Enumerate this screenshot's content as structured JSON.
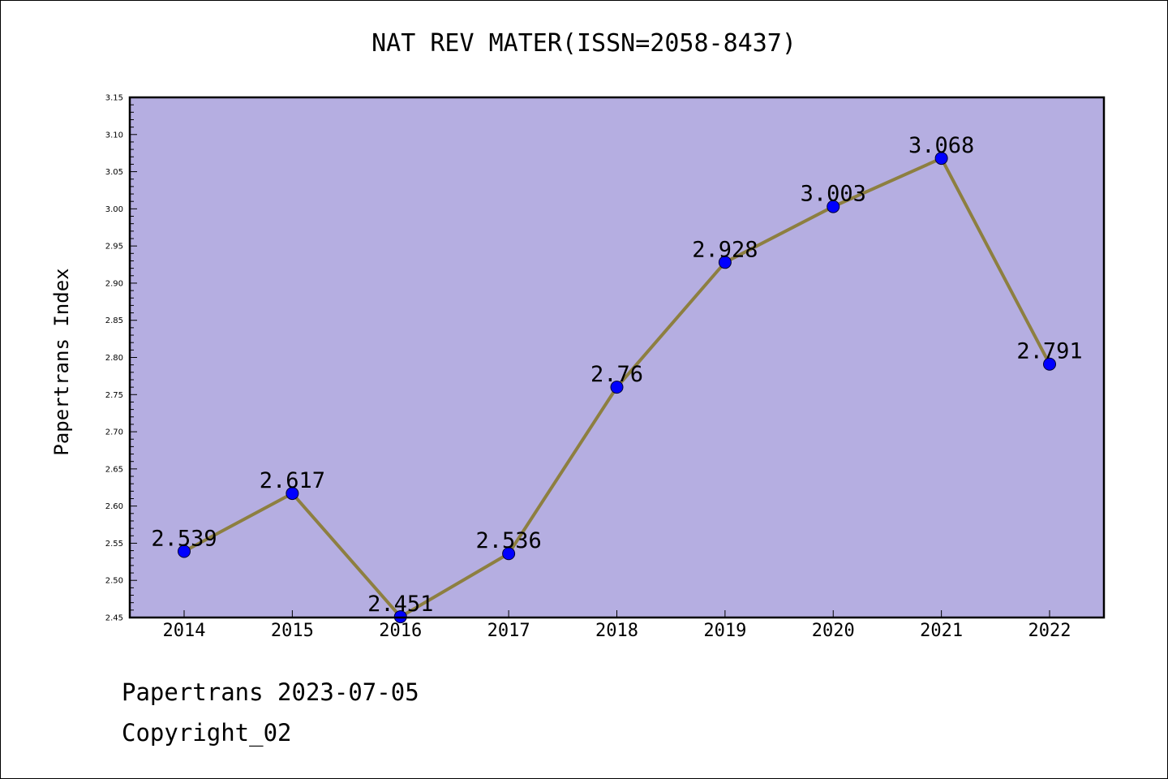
{
  "colors": {
    "plot_background": "#b5aee1",
    "line": "#8d7f40",
    "marker_fill": "#0000ff",
    "marker_stroke": "#000033"
  },
  "chart_data": {
    "type": "line",
    "title": "NAT REV MATER(ISSN=2058-8437)",
    "xlabel": "",
    "ylabel": "Papertrans Index",
    "categories": [
      "2014",
      "2015",
      "2016",
      "2017",
      "2018",
      "2019",
      "2020",
      "2021",
      "2022"
    ],
    "series": [
      {
        "values": [
          2.539,
          2.617,
          2.451,
          2.536,
          2.76,
          2.928,
          3.003,
          3.068,
          2.791
        ],
        "labels": [
          "2.539",
          "2.617",
          "2.451",
          "2.536",
          "2.76",
          "2.928",
          "3.003",
          "3.068",
          "2.791"
        ]
      }
    ],
    "ylim": [
      2.45,
      3.15
    ],
    "yticks": [
      "2.45",
      "2.50",
      "2.55",
      "2.60",
      "2.65",
      "2.70",
      "2.75",
      "2.80",
      "2.85",
      "2.90",
      "2.95",
      "3.00",
      "3.05",
      "3.10",
      "3.15"
    ],
    "grid": false,
    "legend": "none"
  },
  "footer": {
    "line1": "Papertrans 2023-07-05",
    "line2": "Copyright_02"
  }
}
